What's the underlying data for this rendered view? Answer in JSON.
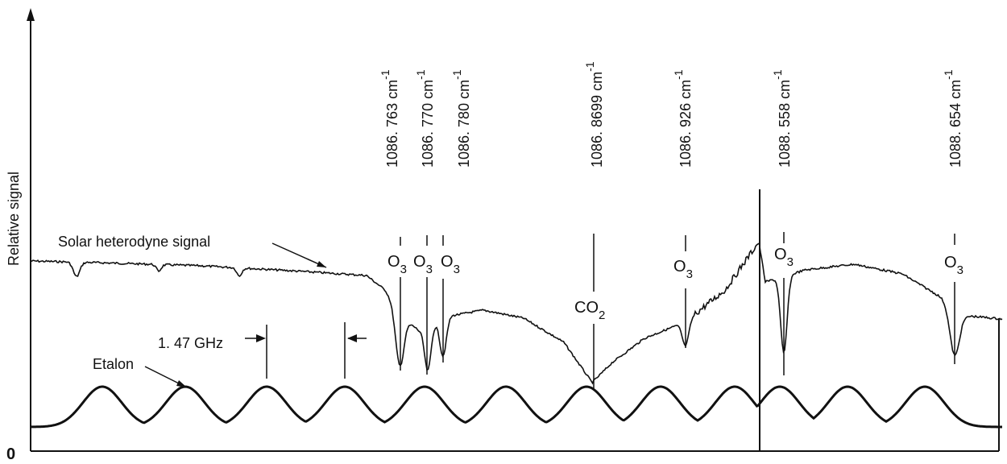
{
  "figure": {
    "ylabel": "Relative signal",
    "zero_label": "0",
    "solar_label": "Solar heterodyne signal",
    "etalon_label": "Etalon",
    "spacing_label": "1. 47 GHz"
  },
  "chart_data": {
    "type": "line",
    "title": "",
    "xlabel": "",
    "ylabel": "Relative signal",
    "y_origin_label": "0",
    "series": [
      {
        "name": "Solar heterodyne signal"
      },
      {
        "name": "Etalon"
      }
    ],
    "etalon_fringe_spacing": "1. 47 GHz",
    "etalon_peak_count": 12,
    "lines": [
      {
        "wavenumber": "1086. 763 cm",
        "exp": "-1",
        "species": "O",
        "sub": "3"
      },
      {
        "wavenumber": "1086. 770 cm",
        "exp": "-1",
        "species": "O",
        "sub": "3"
      },
      {
        "wavenumber": "1086. 780 cm",
        "exp": "-1",
        "species": "O",
        "sub": "3"
      },
      {
        "wavenumber": "1086. 8699 cm",
        "exp": "-1",
        "species": "CO",
        "sub": "2"
      },
      {
        "wavenumber": "1086. 926 cm",
        "exp": "-1",
        "species": "O",
        "sub": "3"
      },
      {
        "wavenumber": "1088. 558 cm",
        "exp": "-1",
        "species": "O",
        "sub": "3"
      },
      {
        "wavenumber": "1088. 654 cm",
        "exp": "-1",
        "species": "O",
        "sub": "3"
      }
    ]
  }
}
